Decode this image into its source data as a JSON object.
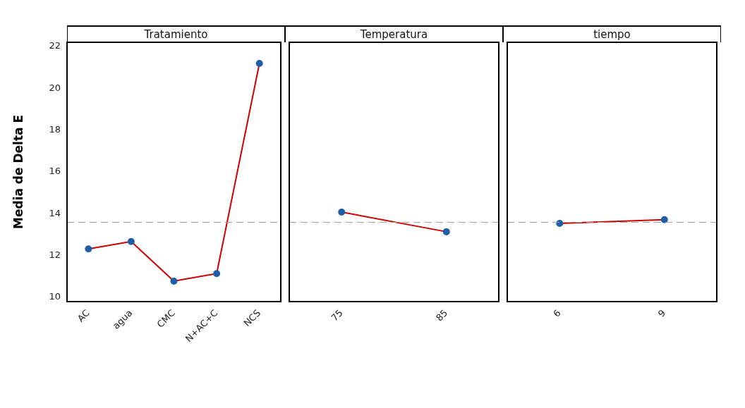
{
  "chart_data": [
    {
      "type": "line",
      "title": "Tratamiento",
      "ylabel": "Media de Delta E",
      "categories": [
        "AC",
        "agua",
        "CMC",
        "N+AC+C",
        "NCS"
      ],
      "series": [
        {
          "color": "#d00000",
          "colors": [
            "#1f5fa8",
            "#1f5fa8",
            "#1f5fa8",
            "#1f5fa8",
            "#1f5fa8"
          ],
          "values": [
            12.32,
            12.67,
            10.78,
            11.14,
            21.19
          ]
        }
      ],
      "ylim": [
        9.8,
        22.2
      ],
      "yticks": [
        10,
        12,
        14,
        16,
        18,
        20,
        22
      ],
      "marker": "circle",
      "grid": false,
      "legend": false,
      "ref_lines": [
        {
          "axis": "y",
          "value": 13.59,
          "color": "#a0a0a0",
          "line_style": "dashed"
        }
      ]
    },
    {
      "type": "line",
      "title": "Temperatura",
      "categories": [
        "75",
        "85"
      ],
      "series": [
        {
          "color": "#d00000",
          "colors": [
            "#1f5fa8",
            "#1f5fa8"
          ],
          "values": [
            14.08,
            13.14
          ]
        }
      ],
      "ylim": [
        9.8,
        22.2
      ],
      "tick_labels": "x",
      "marker": "circle",
      "grid": false,
      "legend": false,
      "ref_lines": [
        {
          "axis": "y",
          "value": 13.59,
          "color": "#a0a0a0",
          "line_style": "dashed"
        }
      ]
    },
    {
      "type": "line",
      "title": "tiempo",
      "categories": [
        "6",
        "9"
      ],
      "series": [
        {
          "color": "#d00000",
          "colors": [
            "#1f5fa8",
            "#1f5fa8"
          ],
          "values": [
            13.54,
            13.72
          ]
        }
      ],
      "ylim": [
        9.8,
        22.2
      ],
      "tick_labels": "x",
      "marker": "circle",
      "grid": false,
      "legend": false,
      "ref_lines": [
        {
          "axis": "y",
          "value": 13.59,
          "color": "#a0a0a0",
          "line_style": "dashed"
        }
      ]
    }
  ]
}
